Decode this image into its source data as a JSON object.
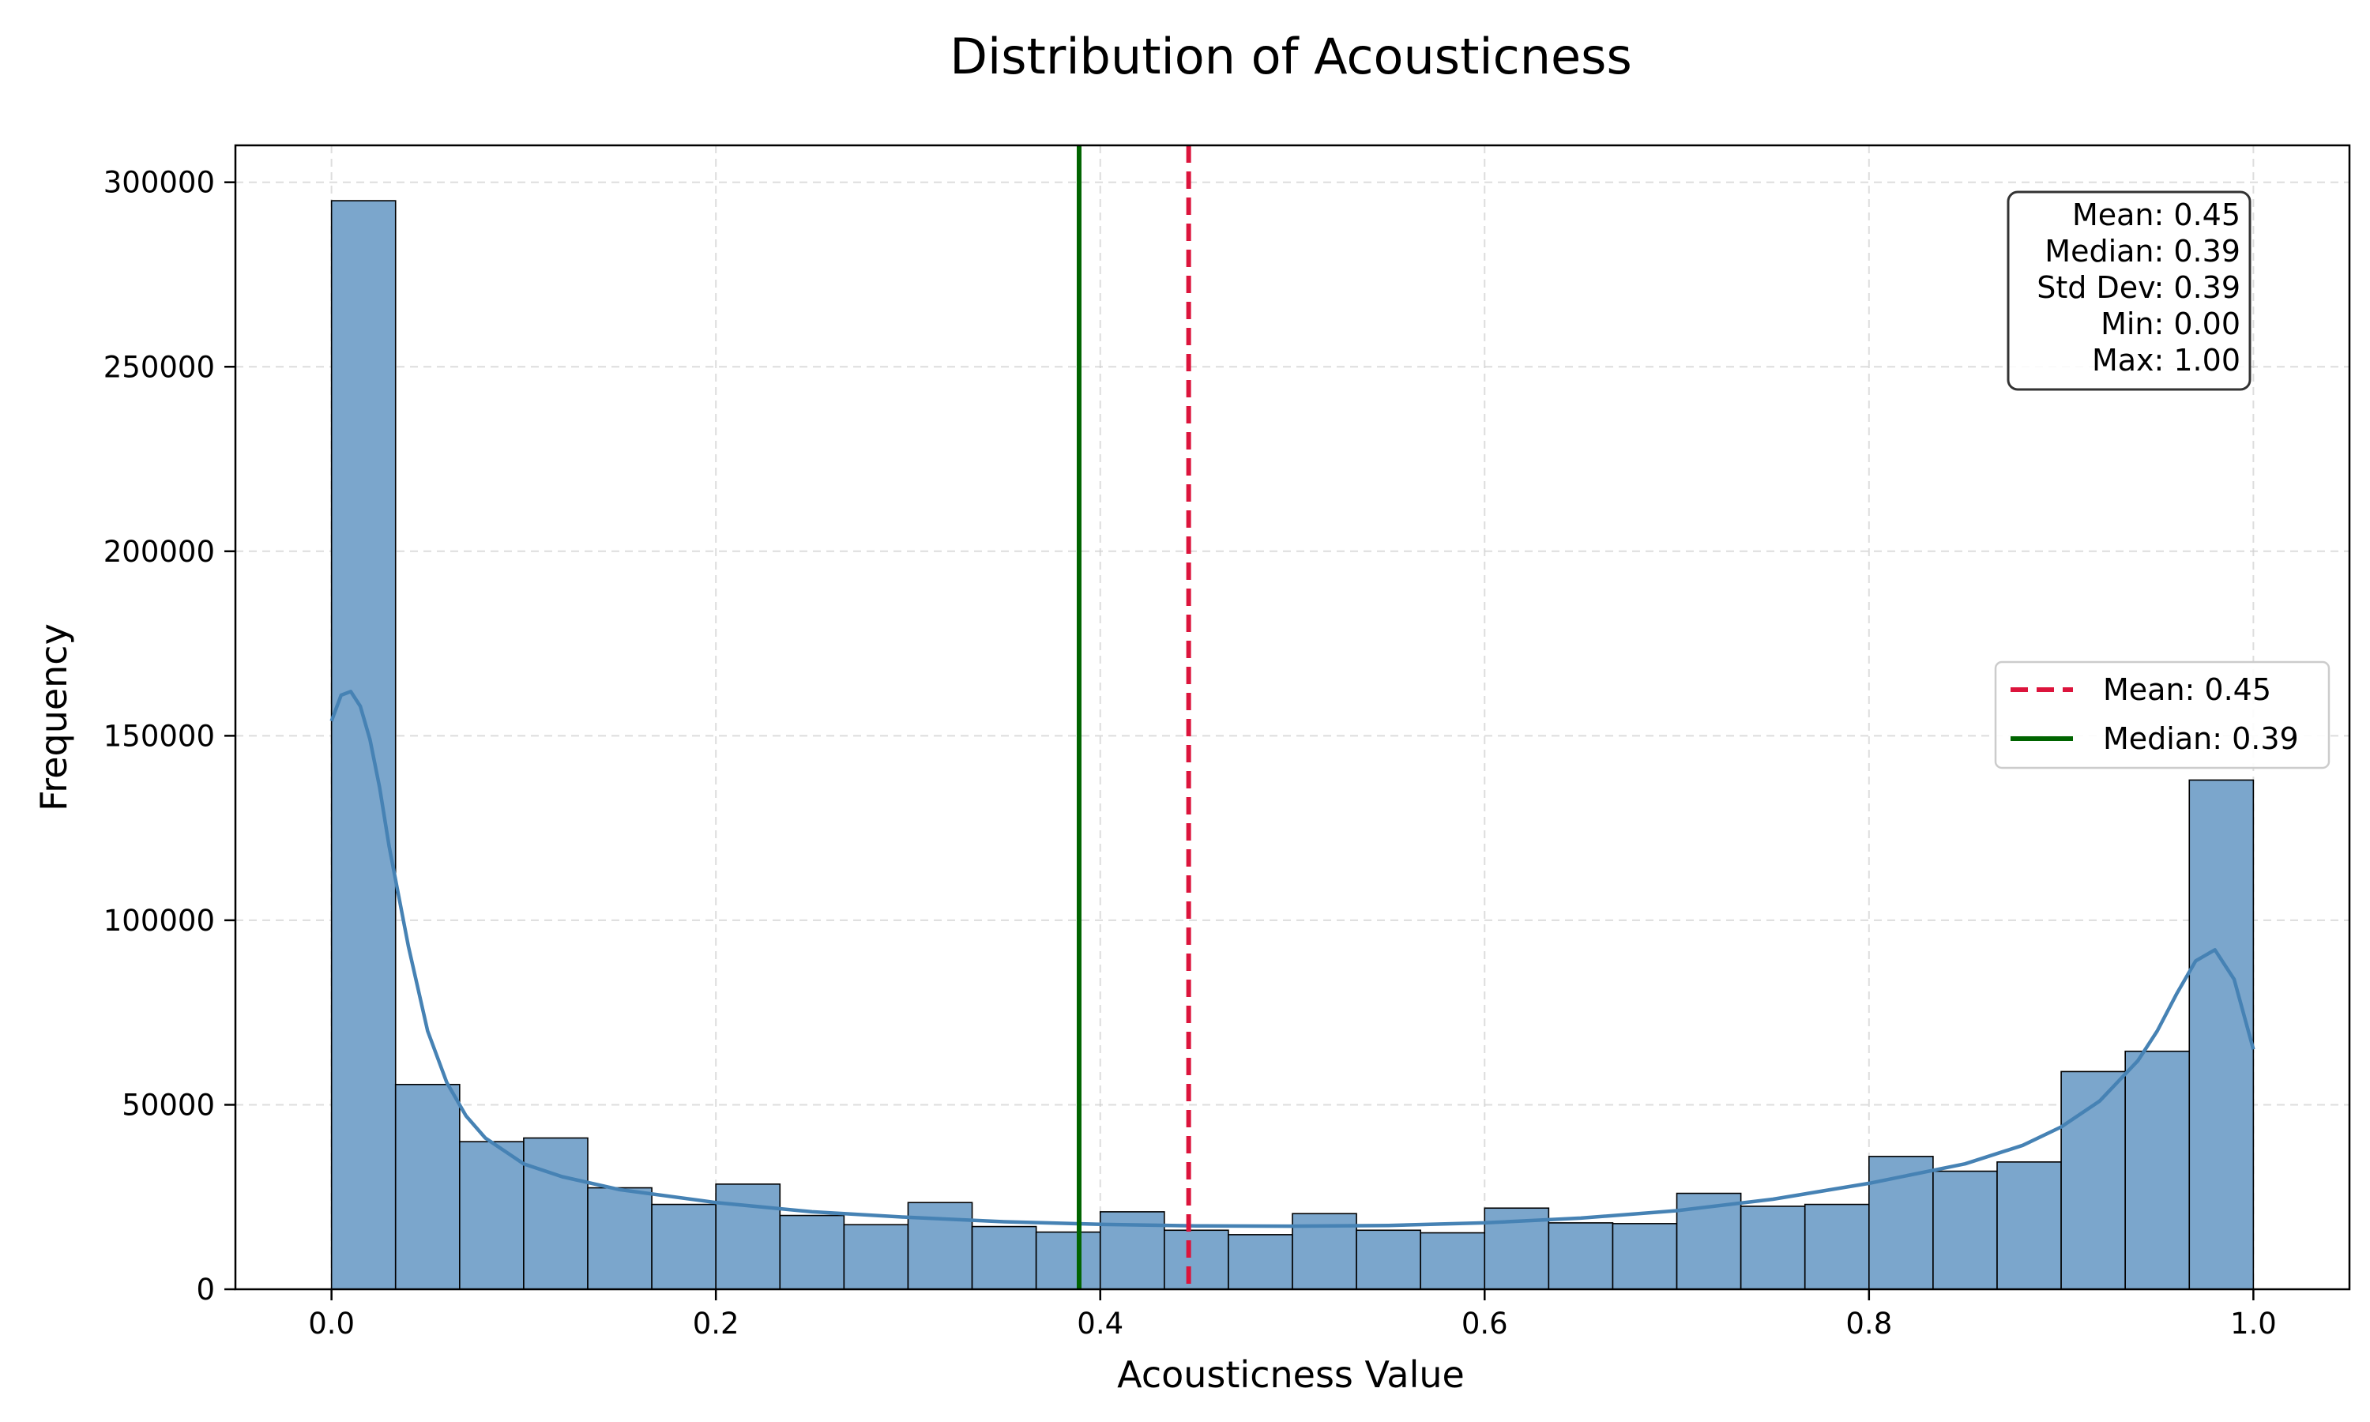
{
  "chart_data": {
    "type": "bar",
    "title": "Distribution of Acousticness",
    "xlabel": "Acousticness Value",
    "ylabel": "Frequency",
    "xlim": [
      -0.05,
      1.05
    ],
    "ylim": [
      0,
      310000
    ],
    "xticks": [
      0.0,
      0.2,
      0.4,
      0.6,
      0.8,
      1.0
    ],
    "xtick_labels": [
      "0.0",
      "0.2",
      "0.4",
      "0.6",
      "0.8",
      "1.0"
    ],
    "yticks": [
      0,
      50000,
      100000,
      150000,
      200000,
      250000,
      300000
    ],
    "ytick_labels": [
      "0",
      "50000",
      "100000",
      "150000",
      "200000",
      "250000",
      "300000"
    ],
    "grid": true,
    "bins": {
      "start": 0.0,
      "end": 1.0,
      "count": 30,
      "values": [
        295000,
        55500,
        40000,
        41000,
        27500,
        23000,
        28500,
        20000,
        17500,
        23500,
        17000,
        15500,
        21000,
        16000,
        14800,
        20500,
        16000,
        15300,
        22000,
        18000,
        17800,
        26000,
        22500,
        23000,
        36000,
        32000,
        34500,
        59000,
        64500,
        138000
      ],
      "color": "#7ba6cc",
      "edgecolor": "#000000"
    },
    "kde": {
      "color": "#4682b4",
      "x": [
        0.0,
        0.005,
        0.01,
        0.015,
        0.02,
        0.025,
        0.03,
        0.04,
        0.05,
        0.06,
        0.07,
        0.08,
        0.1,
        0.12,
        0.15,
        0.2,
        0.25,
        0.3,
        0.35,
        0.4,
        0.45,
        0.5,
        0.55,
        0.6,
        0.65,
        0.7,
        0.75,
        0.8,
        0.85,
        0.88,
        0.9,
        0.92,
        0.94,
        0.95,
        0.96,
        0.97,
        0.98,
        0.99,
        1.0
      ],
      "y": [
        154000,
        161000,
        162000,
        158000,
        149000,
        136000,
        120000,
        93000,
        70000,
        56000,
        47000,
        41000,
        34000,
        30500,
        27000,
        23500,
        21000,
        19500,
        18300,
        17600,
        17200,
        17100,
        17300,
        18000,
        19300,
        21300,
        24400,
        28700,
        34000,
        39000,
        44000,
        51000,
        62000,
        70000,
        80000,
        89000,
        92000,
        84000,
        65000
      ]
    },
    "reference_lines": [
      {
        "name": "Mean: 0.45",
        "x": 0.446,
        "color": "#dc143c",
        "style": "dashed"
      },
      {
        "name": "Median: 0.39",
        "x": 0.389,
        "color": "#006400",
        "style": "solid"
      }
    ],
    "legend": {
      "placement": "center-right"
    },
    "stats_box": {
      "placement": "top-right",
      "lines": [
        "Mean: 0.45",
        "Median: 0.39",
        "Std Dev: 0.39",
        "Min: 0.00",
        "Max: 1.00"
      ]
    }
  }
}
